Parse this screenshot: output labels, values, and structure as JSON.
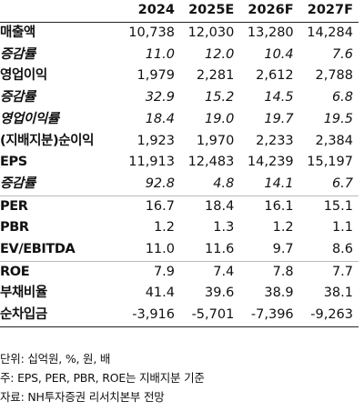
{
  "table": {
    "header": [
      "",
      "2024",
      "2025E",
      "2026F",
      "2027F"
    ],
    "rows": [
      {
        "label": "매출액",
        "values": [
          "10,738",
          "12,030",
          "13,280",
          "14,284"
        ],
        "style": "bold"
      },
      {
        "label": "증감률",
        "values": [
          "11.0",
          "12.0",
          "10.4",
          "7.6"
        ],
        "style": "italic"
      },
      {
        "label": "영업이익",
        "values": [
          "1,979",
          "2,281",
          "2,612",
          "2,788"
        ],
        "style": "bold"
      },
      {
        "label": "증감률",
        "values": [
          "32.9",
          "15.2",
          "14.5",
          "6.8"
        ],
        "style": "italic"
      },
      {
        "label": "영업이익률",
        "values": [
          "18.4",
          "19.0",
          "19.7",
          "19.5"
        ],
        "style": "italic"
      },
      {
        "label": "(지배지분)순이익",
        "values": [
          "1,923",
          "1,970",
          "2,233",
          "2,384"
        ],
        "style": "bold"
      },
      {
        "label": "EPS",
        "values": [
          "11,913",
          "12,483",
          "14,239",
          "15,197"
        ],
        "style": "bold"
      },
      {
        "label": "증감률",
        "values": [
          "92.8",
          "4.8",
          "14.1",
          "6.7"
        ],
        "style": "italic"
      },
      {
        "label": "PER",
        "values": [
          "16.7",
          "18.4",
          "16.1",
          "15.1"
        ],
        "style": "bold"
      },
      {
        "label": "PBR",
        "values": [
          "1.2",
          "1.3",
          "1.2",
          "1.1"
        ],
        "style": "bold"
      },
      {
        "label": "EV/EBITDA",
        "values": [
          "11.0",
          "11.6",
          "9.7",
          "8.6"
        ],
        "style": "bold"
      },
      {
        "label": "ROE",
        "values": [
          "7.9",
          "7.4",
          "7.8",
          "7.7"
        ],
        "style": "bold"
      },
      {
        "label": "부채비율",
        "values": [
          "41.4",
          "39.6",
          "38.9",
          "38.1"
        ],
        "style": "bold"
      },
      {
        "label": "순차입금",
        "values": [
          "-3,916",
          "-5,701",
          "-7,396",
          "-9,263"
        ],
        "style": "bold"
      }
    ]
  },
  "notes": {
    "unit": "단위: 십억원, %, 원, 배",
    "note": "주: EPS, PER, PBR, ROE는 지배지분 기준",
    "source": "자료: NH투자증권 리서치본부 전망"
  }
}
